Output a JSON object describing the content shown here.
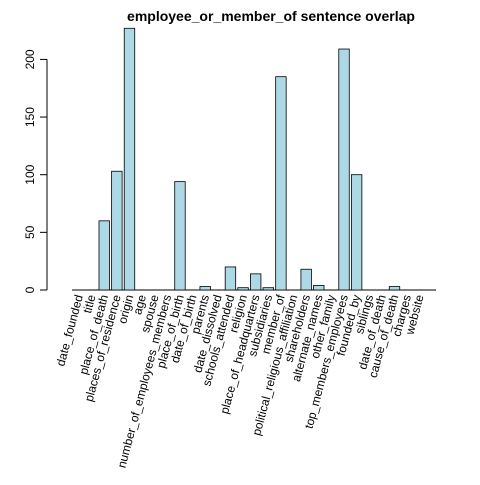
{
  "chart_data": {
    "type": "bar",
    "title": "employee_or_member_of sentence overlap",
    "xlabel": "",
    "ylabel": "",
    "ylim": [
      0,
      235
    ],
    "yticks": [
      0,
      50,
      100,
      150,
      200
    ],
    "bar_color": "#add8e6",
    "categories": [
      "date_founded",
      "title",
      "place_of_death",
      "places_of_residence",
      "origin",
      "age",
      "spouse",
      "number_of_employees_members",
      "place_of_birth",
      "date_of_birth",
      "parents",
      "date_dissolved",
      "schools_attended",
      "religion",
      "place_of_headquarters",
      "subsidiaries",
      "member_of",
      "political_religious_affiliation",
      "shareholders",
      "alternate_names",
      "other_family",
      "top_members_employees",
      "founded_by",
      "siblings",
      "date_of_death",
      "cause_of_death",
      "charges",
      "website"
    ],
    "values": [
      0,
      0,
      60,
      103,
      227,
      0,
      0,
      0,
      94,
      0,
      3,
      0,
      20,
      2,
      14,
      2,
      185,
      0,
      18,
      4,
      0,
      209,
      100,
      0,
      0,
      3,
      0,
      0
    ]
  }
}
